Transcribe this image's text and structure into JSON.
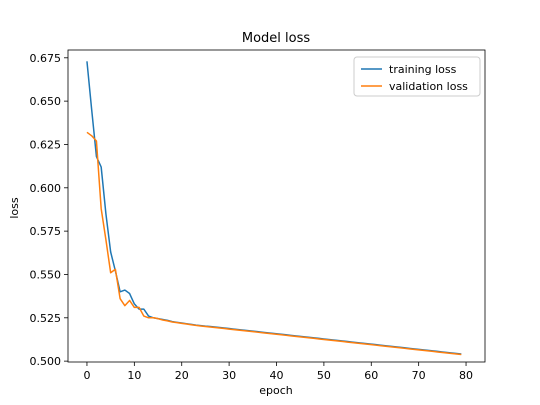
{
  "chart_data": {
    "type": "line",
    "title": "Model loss",
    "xlabel": "epoch",
    "ylabel": "loss",
    "xlim": [
      -4,
      84
    ],
    "ylim": [
      0.4995,
      0.6795
    ],
    "xticks": [
      0,
      10,
      20,
      30,
      40,
      50,
      60,
      70,
      80
    ],
    "xtick_labels": [
      "0",
      "10",
      "20",
      "30",
      "40",
      "50",
      "60",
      "70",
      "80"
    ],
    "yticks": [
      0.5,
      0.525,
      0.55,
      0.575,
      0.6,
      0.625,
      0.65,
      0.675
    ],
    "ytick_labels": [
      "0.500",
      "0.525",
      "0.550",
      "0.575",
      "0.600",
      "0.625",
      "0.650",
      "0.675"
    ],
    "grid": false,
    "legend": {
      "position": "top-right"
    },
    "series": [
      {
        "name": "training loss",
        "color": "#1f77b4",
        "x": [
          0,
          1,
          2,
          3,
          4,
          5,
          6,
          7,
          8,
          9,
          10,
          11,
          12,
          13,
          14,
          15,
          16,
          17,
          18,
          19,
          20,
          21,
          22,
          23,
          24,
          25,
          26,
          27,
          28,
          29,
          30,
          31,
          32,
          33,
          34,
          35,
          36,
          37,
          38,
          39,
          40,
          41,
          42,
          43,
          44,
          45,
          46,
          47,
          48,
          49,
          50,
          51,
          52,
          53,
          54,
          55,
          56,
          57,
          58,
          59,
          60,
          61,
          62,
          63,
          64,
          65,
          66,
          67,
          68,
          69,
          70,
          71,
          72,
          73,
          74,
          75,
          76,
          77,
          78,
          79
        ],
        "y": [
          0.673,
          0.645,
          0.618,
          0.612,
          0.585,
          0.563,
          0.552,
          0.54,
          0.541,
          0.539,
          0.533,
          0.53,
          0.53,
          0.526,
          0.525,
          0.5245,
          0.524,
          0.5235,
          0.5228,
          0.5224,
          0.522,
          0.5216,
          0.5212,
          0.5208,
          0.5205,
          0.5202,
          0.52,
          0.5197,
          0.5194,
          0.5191,
          0.5188,
          0.5185,
          0.5182,
          0.5179,
          0.5176,
          0.5173,
          0.517,
          0.5167,
          0.5164,
          0.5161,
          0.5158,
          0.5155,
          0.5152,
          0.5149,
          0.5146,
          0.5143,
          0.514,
          0.5137,
          0.5134,
          0.5131,
          0.5128,
          0.5125,
          0.5122,
          0.5119,
          0.5116,
          0.5113,
          0.511,
          0.5107,
          0.5104,
          0.5101,
          0.5098,
          0.5095,
          0.5092,
          0.5089,
          0.5086,
          0.5083,
          0.508,
          0.5077,
          0.5074,
          0.5071,
          0.5068,
          0.5065,
          0.5062,
          0.5059,
          0.5056,
          0.5053,
          0.505,
          0.5047,
          0.5044,
          0.5041
        ]
      },
      {
        "name": "validation loss",
        "color": "#ff7f0e",
        "x": [
          0,
          1,
          2,
          3,
          4,
          5,
          6,
          7,
          8,
          9,
          10,
          11,
          12,
          13,
          14,
          15,
          16,
          17,
          18,
          19,
          20,
          21,
          22,
          23,
          24,
          25,
          26,
          27,
          28,
          29,
          30,
          31,
          32,
          33,
          34,
          35,
          36,
          37,
          38,
          39,
          40,
          41,
          42,
          43,
          44,
          45,
          46,
          47,
          48,
          49,
          50,
          51,
          52,
          53,
          54,
          55,
          56,
          57,
          58,
          59,
          60,
          61,
          62,
          63,
          64,
          65,
          66,
          67,
          68,
          69,
          70,
          71,
          72,
          73,
          74,
          75,
          76,
          77,
          78,
          79
        ],
        "y": [
          0.632,
          0.63,
          0.627,
          0.588,
          0.57,
          0.551,
          0.553,
          0.536,
          0.532,
          0.535,
          0.531,
          0.531,
          0.526,
          0.525,
          0.525,
          0.5245,
          0.5237,
          0.5232,
          0.5226,
          0.5222,
          0.5218,
          0.5214,
          0.521,
          0.5206,
          0.5203,
          0.52,
          0.5197,
          0.5194,
          0.5191,
          0.5188,
          0.5185,
          0.5182,
          0.5179,
          0.5176,
          0.5173,
          0.517,
          0.5167,
          0.5164,
          0.5161,
          0.5158,
          0.5155,
          0.5152,
          0.5149,
          0.5146,
          0.5143,
          0.514,
          0.5137,
          0.5134,
          0.5131,
          0.5128,
          0.5125,
          0.5122,
          0.5119,
          0.5116,
          0.5113,
          0.511,
          0.5107,
          0.5104,
          0.5101,
          0.5098,
          0.5095,
          0.5092,
          0.5089,
          0.5086,
          0.5083,
          0.508,
          0.5077,
          0.5074,
          0.5071,
          0.5068,
          0.5065,
          0.5062,
          0.5059,
          0.5056,
          0.5053,
          0.505,
          0.5047,
          0.5044,
          0.5041,
          0.5038
        ]
      }
    ]
  }
}
